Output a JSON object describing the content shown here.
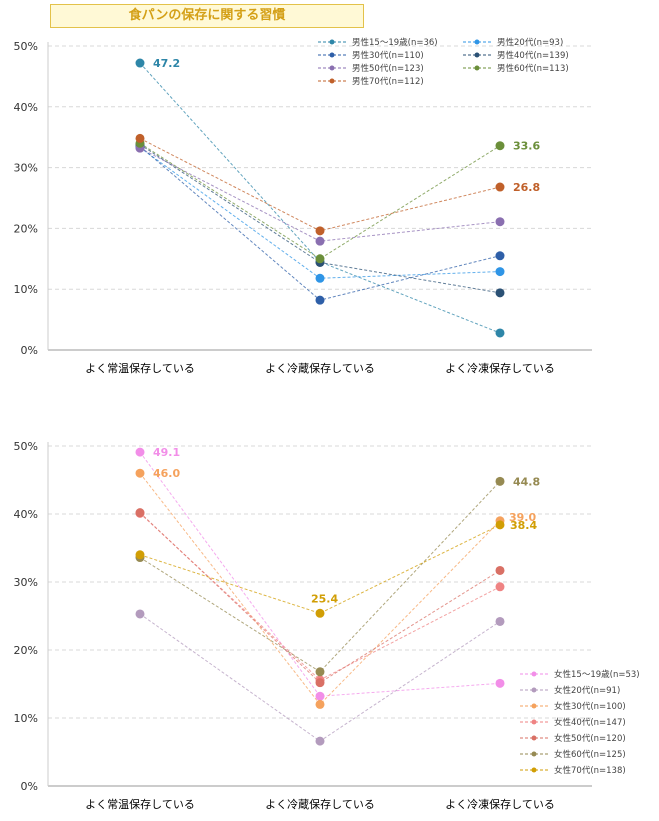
{
  "title": "食パンの保存に関する習慣",
  "chart_data": [
    {
      "type": "line",
      "name": "male",
      "categories": [
        "よく常温保存している",
        "よく冷蔵保存している",
        "よく冷凍保存している"
      ],
      "ylim": [
        0,
        50
      ],
      "yticks": [
        "0%",
        "10%",
        "20%",
        "30%",
        "40%",
        "50%"
      ],
      "series": [
        {
          "name": "男性15～19歳(n=36)",
          "color": "#2e86a8",
          "values": [
            47.2,
            14.5,
            2.8
          ]
        },
        {
          "name": "男性20代(n=93)",
          "color": "#2f95e6",
          "values": [
            33.3,
            11.8,
            12.9
          ]
        },
        {
          "name": "男性30代(n=110)",
          "color": "#2e5fa8",
          "values": [
            33.5,
            8.2,
            15.5
          ]
        },
        {
          "name": "男性40代(n=139)",
          "color": "#2b5175",
          "values": [
            33.8,
            14.4,
            9.4
          ]
        },
        {
          "name": "男性50代(n=123)",
          "color": "#8a6fb0",
          "values": [
            33.2,
            17.9,
            21.1
          ]
        },
        {
          "name": "男性60代(n=113)",
          "color": "#6b8f3a",
          "values": [
            34.0,
            15.0,
            33.6
          ]
        },
        {
          "name": "男性70代(n=112)",
          "color": "#c0602a",
          "values": [
            34.8,
            19.6,
            26.8
          ]
        }
      ],
      "labels": [
        {
          "series": 0,
          "point": 0,
          "text": "47.2"
        },
        {
          "series": 5,
          "point": 2,
          "text": "33.6"
        },
        {
          "series": 6,
          "point": 2,
          "text": "26.8"
        }
      ]
    },
    {
      "type": "line",
      "name": "female",
      "categories": [
        "よく常温保存している",
        "よく冷蔵保存している",
        "よく冷凍保存している"
      ],
      "ylim": [
        0,
        50
      ],
      "yticks": [
        "0%",
        "10%",
        "20%",
        "30%",
        "40%",
        "50%"
      ],
      "series": [
        {
          "name": "女性15～19歳(n=53)",
          "color": "#f28ee8",
          "values": [
            49.1,
            13.2,
            15.1
          ]
        },
        {
          "name": "女性20代(n=91)",
          "color": "#b39bbd",
          "values": [
            25.3,
            6.6,
            24.2
          ]
        },
        {
          "name": "女性30代(n=100)",
          "color": "#f5a25d",
          "values": [
            46.0,
            12.0,
            39.0
          ]
        },
        {
          "name": "女性40代(n=147)",
          "color": "#ef8383",
          "values": [
            40.1,
            15.6,
            29.3
          ]
        },
        {
          "name": "女性50代(n=120)",
          "color": "#d97065",
          "values": [
            40.2,
            15.2,
            31.7
          ]
        },
        {
          "name": "女性60代(n=125)",
          "color": "#968a52",
          "values": [
            33.6,
            16.8,
            44.8
          ]
        },
        {
          "name": "女性70代(n=138)",
          "color": "#d19e05",
          "values": [
            34.0,
            25.4,
            38.4
          ]
        }
      ],
      "labels": [
        {
          "series": 0,
          "point": 0,
          "text": "49.1"
        },
        {
          "series": 2,
          "point": 0,
          "text": "46.0"
        },
        {
          "series": 6,
          "point": 1,
          "text": "25.4"
        },
        {
          "series": 5,
          "point": 2,
          "text": "44.8"
        },
        {
          "series": 2,
          "point": 2,
          "text": "39.0"
        },
        {
          "series": 6,
          "point": 2,
          "text": "38.4"
        }
      ]
    }
  ]
}
